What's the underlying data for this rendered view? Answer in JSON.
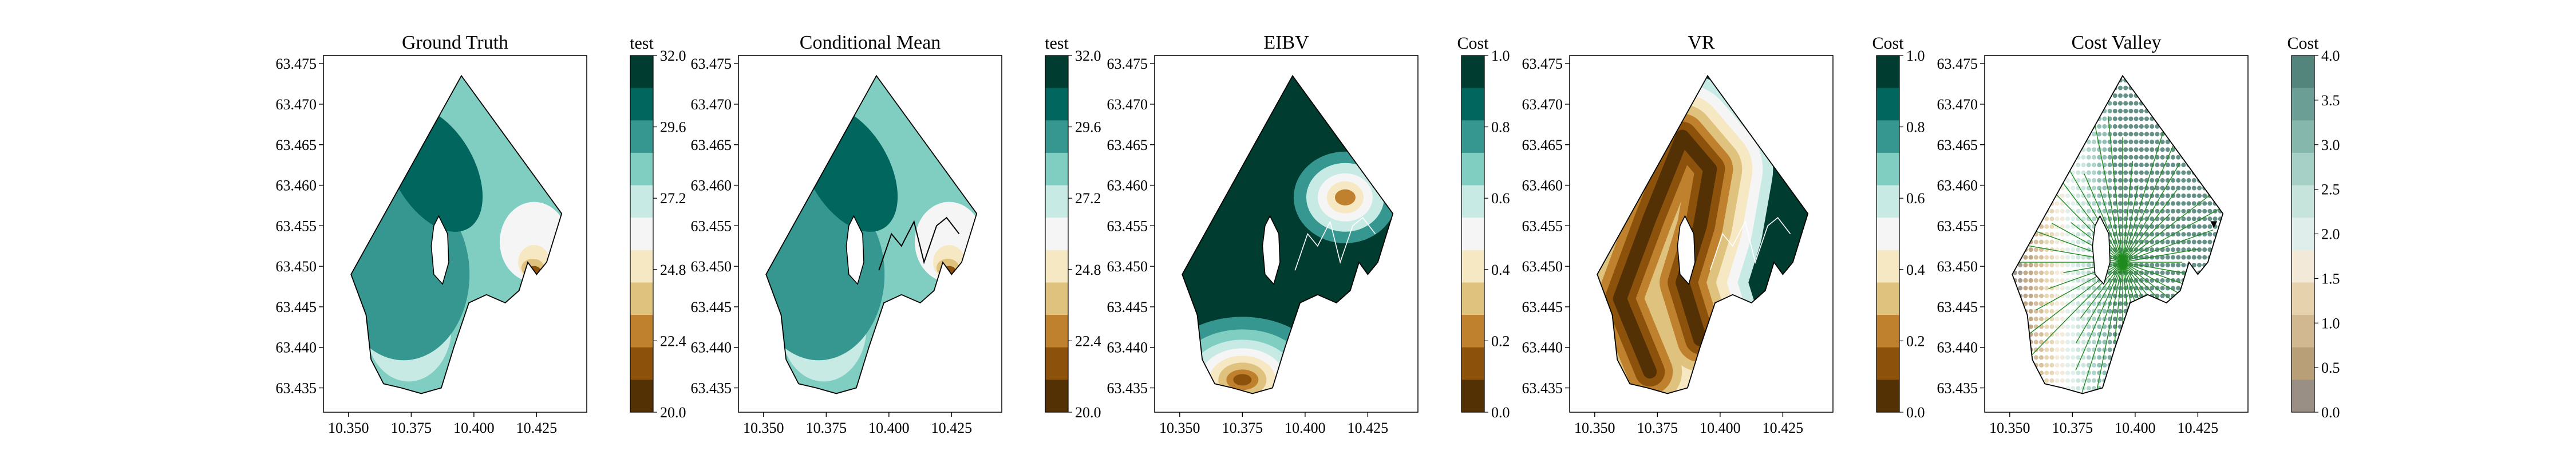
{
  "figure": {
    "panels": [
      {
        "title": "Ground Truth",
        "colorbar_label": "test",
        "colorbar_ticks": [
          "32.0",
          "29.6",
          "27.2",
          "24.8",
          "22.4",
          "20.0"
        ],
        "cmap": "teal",
        "style": "truth"
      },
      {
        "title": "Conditional Mean",
        "colorbar_label": "test",
        "colorbar_ticks": [
          "32.0",
          "29.6",
          "27.2",
          "24.8",
          "22.4",
          "20.0"
        ],
        "cmap": "teal",
        "style": "mean"
      },
      {
        "title": "EIBV",
        "colorbar_label": "Cost",
        "colorbar_ticks": [
          "1.0",
          "0.8",
          "0.6",
          "0.4",
          "0.2",
          "0.0"
        ],
        "cmap": "teal",
        "style": "eibv"
      },
      {
        "title": "VR",
        "colorbar_label": "Cost",
        "colorbar_ticks": [
          "1.0",
          "0.8",
          "0.6",
          "0.4",
          "0.2",
          "0.0"
        ],
        "cmap": "teal",
        "style": "vr"
      },
      {
        "title": "Cost Valley",
        "colorbar_label": "Cost",
        "colorbar_ticks": [
          "4.0",
          "3.5",
          "3.0",
          "2.5",
          "2.0",
          "1.5",
          "1.0",
          "0.5",
          "0.0"
        ],
        "cmap": "teal_muted",
        "style": "valley"
      }
    ],
    "x_ticks": [
      "10.350",
      "10.375",
      "10.400",
      "10.425"
    ],
    "y_ticks": [
      "63.475",
      "63.470",
      "63.465",
      "63.460",
      "63.455",
      "63.450",
      "63.445",
      "63.440",
      "63.435"
    ],
    "colors": {
      "teal": [
        "#543005",
        "#8c510a",
        "#bf812d",
        "#dfc27d",
        "#f6e8c3",
        "#f5f5f5",
        "#c7eae5",
        "#80cdc1",
        "#35978f",
        "#01665e",
        "#003c30"
      ],
      "teal_muted": [
        "#9a8f84",
        "#b89f78",
        "#d1b890",
        "#e6d3ad",
        "#f2e9d8",
        "#dfeeea",
        "#c6e3dc",
        "#a6cfc6",
        "#85b7ad",
        "#6b9e94",
        "#54857c"
      ],
      "boundary": "#000000",
      "path": "#000000",
      "tree": "#1f8a1f"
    }
  },
  "chart_data": [
    {
      "type": "heatmap",
      "title": "Ground Truth",
      "xlim": [
        10.34,
        10.445
      ],
      "ylim": [
        63.432,
        63.476
      ],
      "colorbar": {
        "label": "test",
        "range": [
          20.0,
          32.0
        ],
        "ticks": [
          20.0,
          22.4,
          24.8,
          27.2,
          29.6,
          32.0
        ]
      }
    },
    {
      "type": "heatmap",
      "title": "Conditional Mean",
      "xlim": [
        10.34,
        10.445
      ],
      "ylim": [
        63.432,
        63.476
      ],
      "colorbar": {
        "label": "test",
        "range": [
          20.0,
          32.0
        ],
        "ticks": [
          20.0,
          22.4,
          24.8,
          27.2,
          29.6,
          32.0
        ]
      }
    },
    {
      "type": "heatmap",
      "title": "EIBV",
      "xlim": [
        10.34,
        10.445
      ],
      "ylim": [
        63.432,
        63.476
      ],
      "colorbar": {
        "label": "Cost",
        "range": [
          0.0,
          1.0
        ],
        "ticks": [
          0.0,
          0.2,
          0.4,
          0.6,
          0.8,
          1.0
        ]
      }
    },
    {
      "type": "heatmap",
      "title": "VR",
      "xlim": [
        10.34,
        10.445
      ],
      "ylim": [
        63.432,
        63.476
      ],
      "colorbar": {
        "label": "Cost",
        "range": [
          0.0,
          1.0
        ],
        "ticks": [
          0.0,
          0.2,
          0.4,
          0.6,
          0.8,
          1.0
        ]
      }
    },
    {
      "type": "scatter",
      "title": "Cost Valley",
      "xlim": [
        10.34,
        10.445
      ],
      "ylim": [
        63.432,
        63.476
      ],
      "colorbar": {
        "label": "Cost",
        "range": [
          0.0,
          4.0
        ],
        "ticks": [
          0.0,
          0.5,
          1.0,
          1.5,
          2.0,
          2.5,
          3.0,
          3.5,
          4.0
        ]
      }
    }
  ]
}
